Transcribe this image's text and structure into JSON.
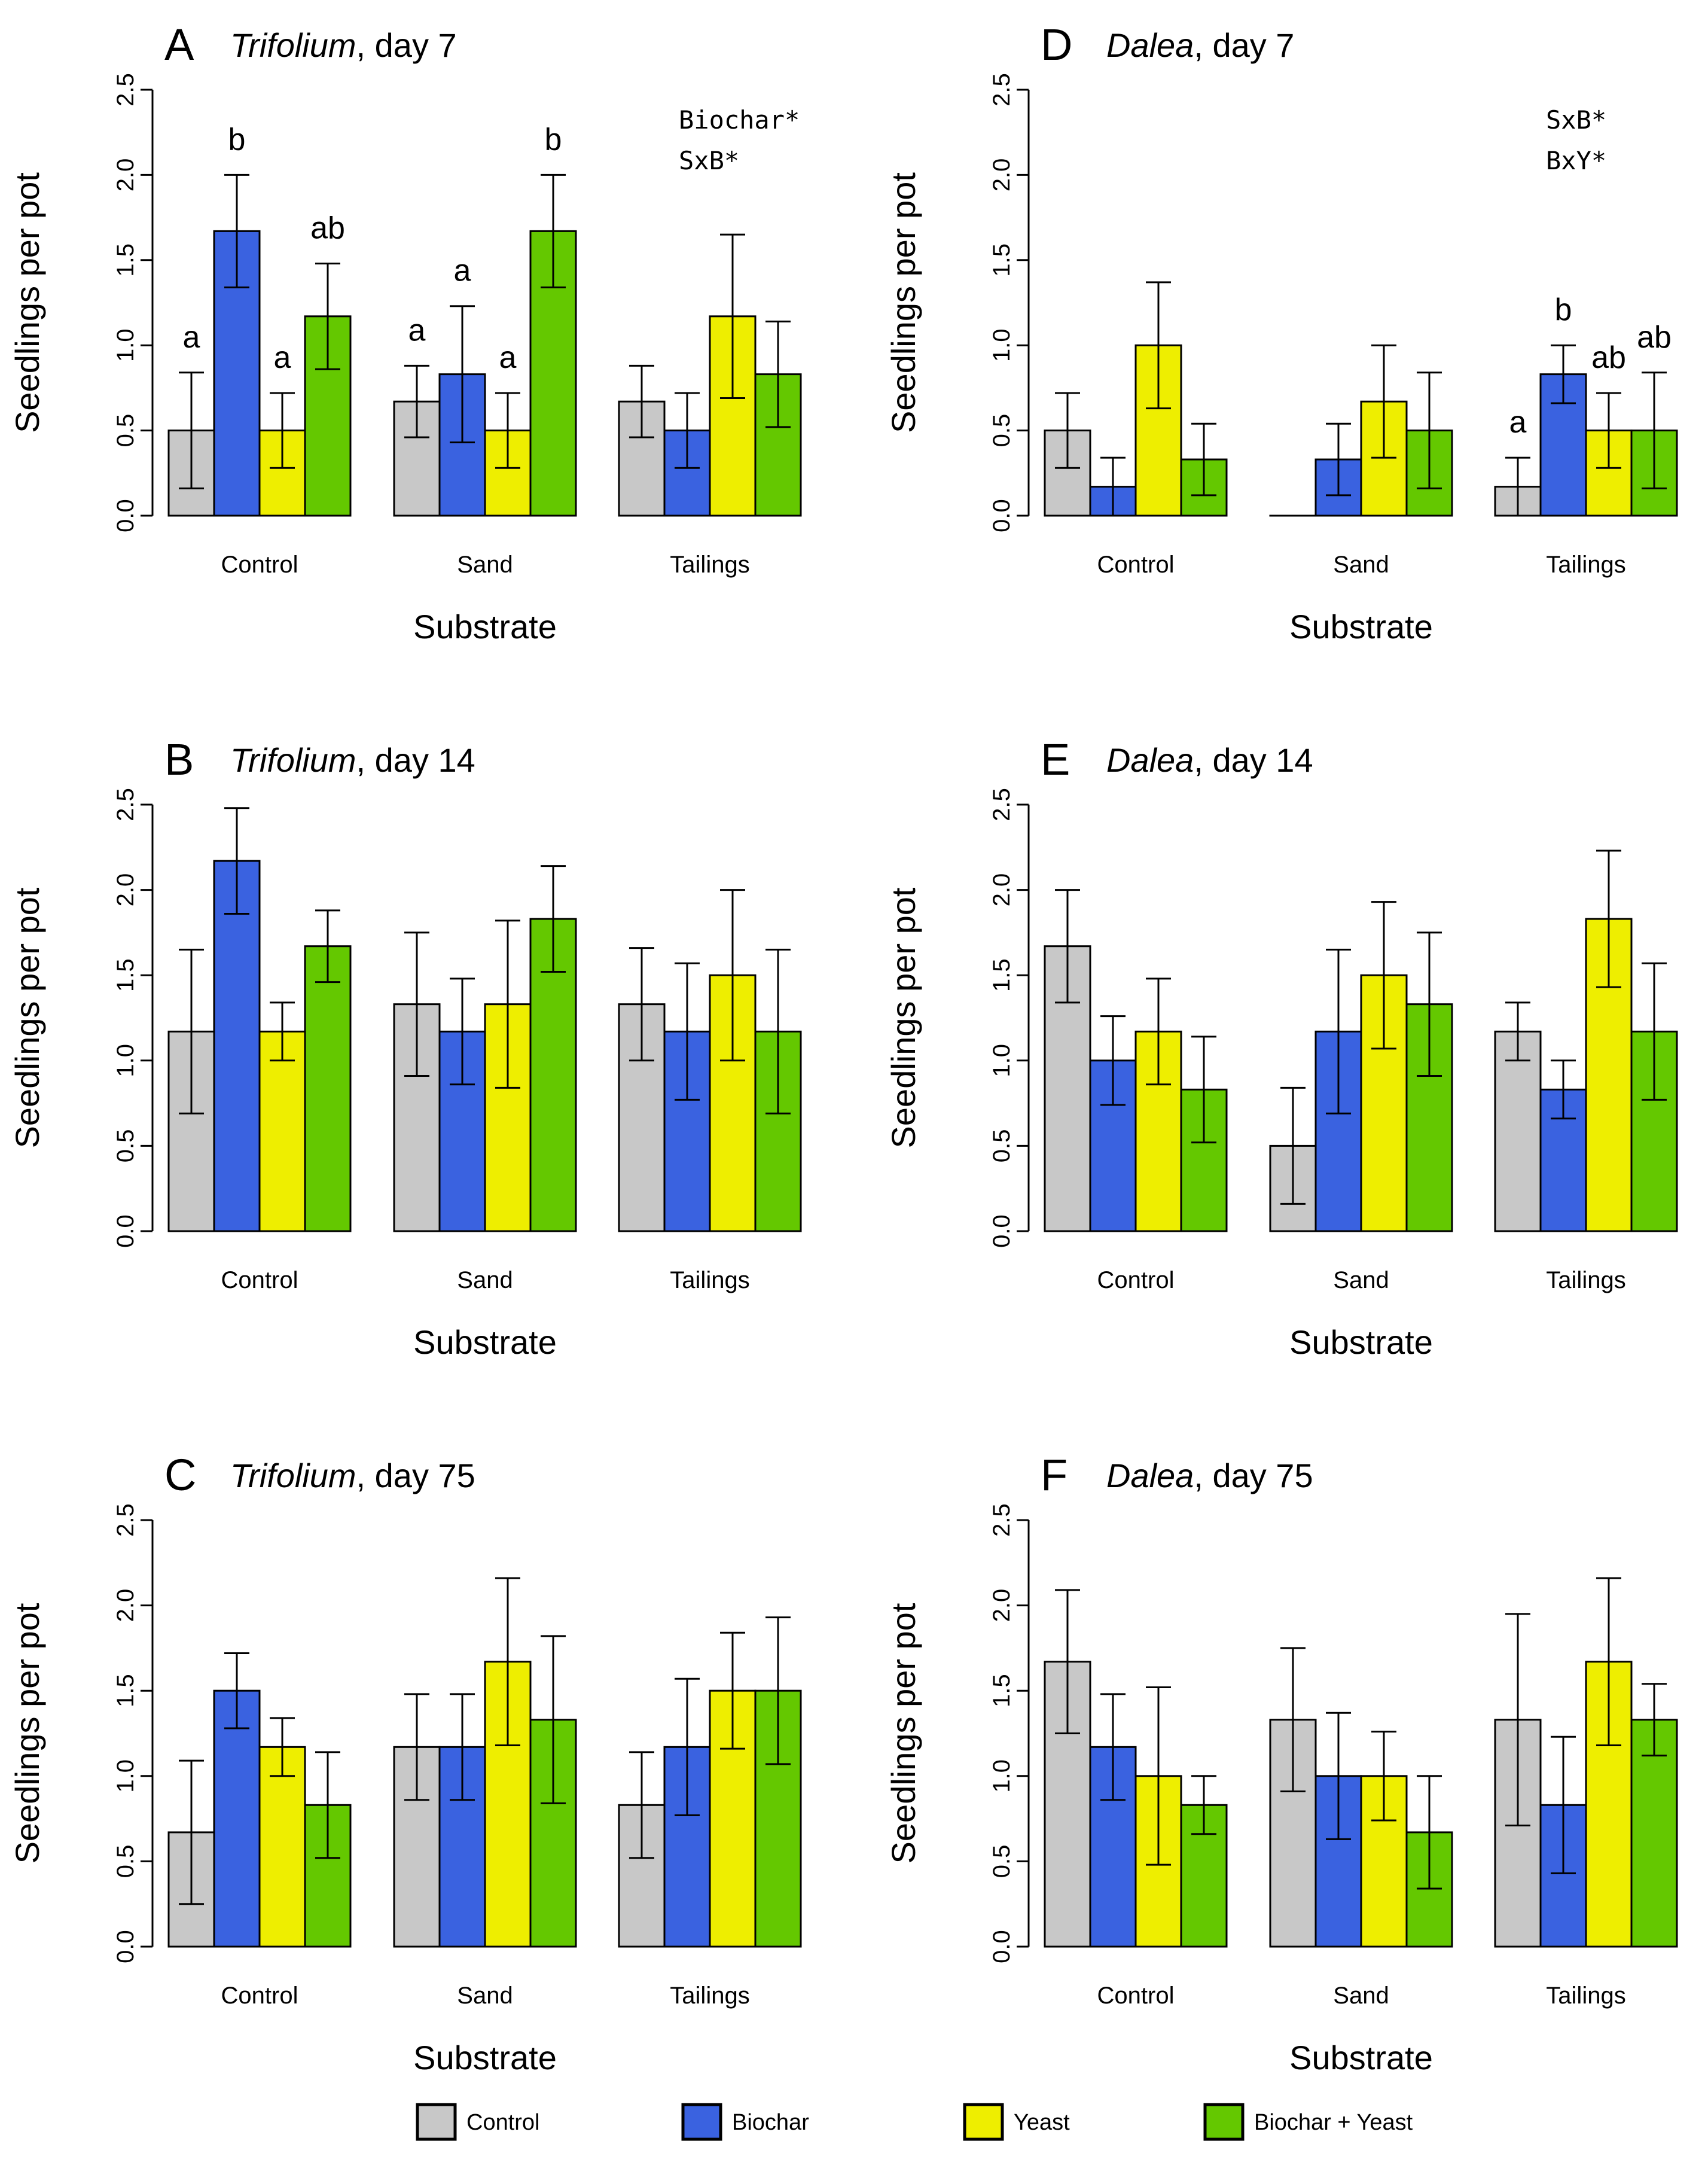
{
  "categories": [
    "Control",
    "Sand",
    "Tailings"
  ],
  "xlabel": "Substrate",
  "ylabel": "Seedlings per pot",
  "ylim": [
    0,
    2.5
  ],
  "yticks": [
    "0.0",
    "0.5",
    "1.0",
    "1.5",
    "2.0",
    "2.5"
  ],
  "colors": {
    "Control": "#c8c8c8",
    "Biochar": "#3a62e0",
    "Yeast": "#eeee00",
    "Biochar + Yeast": "#64c800"
  },
  "legend": [
    {
      "label": "Control",
      "color": "#c8c8c8"
    },
    {
      "label": "Biochar",
      "color": "#3a62e0"
    },
    {
      "label": "Yeast",
      "color": "#eeee00"
    },
    {
      "label": "Biochar + Yeast",
      "color": "#64c800"
    }
  ],
  "chart_data": [
    {
      "type": "bar",
      "panel": "A",
      "species": "Trifolium",
      "day_label": ", day 7",
      "xlabel": "Substrate",
      "ylabel": "Seedlings per pot",
      "ylim": [
        0,
        2.5
      ],
      "categories": [
        "Control",
        "Sand",
        "Tailings"
      ],
      "series": [
        {
          "name": "Control",
          "values": [
            0.5,
            0.67,
            0.67
          ],
          "errors": [
            0.34,
            0.21,
            0.21
          ],
          "letters": [
            "a",
            "a",
            ""
          ]
        },
        {
          "name": "Biochar",
          "values": [
            1.67,
            0.83,
            0.5
          ],
          "errors": [
            0.33,
            0.4,
            0.22
          ],
          "letters": [
            "b",
            "a",
            ""
          ]
        },
        {
          "name": "Yeast",
          "values": [
            0.5,
            0.5,
            1.17
          ],
          "errors": [
            0.22,
            0.22,
            0.48
          ],
          "letters": [
            "a",
            "a",
            ""
          ]
        },
        {
          "name": "Biochar + Yeast",
          "values": [
            1.17,
            1.67,
            0.83
          ],
          "errors": [
            0.31,
            0.33,
            0.31
          ],
          "letters": [
            "ab",
            "b",
            ""
          ]
        }
      ],
      "annotations": [
        "Biochar*",
        "SxB*"
      ]
    },
    {
      "type": "bar",
      "panel": "B",
      "species": "Trifolium",
      "day_label": ", day 14",
      "xlabel": "Substrate",
      "ylabel": "Seedlings per pot",
      "ylim": [
        0,
        2.5
      ],
      "categories": [
        "Control",
        "Sand",
        "Tailings"
      ],
      "series": [
        {
          "name": "Control",
          "values": [
            1.17,
            1.33,
            1.33
          ],
          "errors": [
            0.48,
            0.42,
            0.33
          ],
          "letters": [
            "",
            "",
            ""
          ]
        },
        {
          "name": "Biochar",
          "values": [
            2.17,
            1.17,
            1.17
          ],
          "errors": [
            0.31,
            0.31,
            0.4
          ],
          "letters": [
            "",
            "",
            ""
          ]
        },
        {
          "name": "Yeast",
          "values": [
            1.17,
            1.33,
            1.5
          ],
          "errors": [
            0.17,
            0.49,
            0.5
          ],
          "letters": [
            "",
            "",
            ""
          ]
        },
        {
          "name": "Biochar + Yeast",
          "values": [
            1.67,
            1.83,
            1.17
          ],
          "errors": [
            0.21,
            0.31,
            0.48
          ],
          "letters": [
            "",
            "",
            ""
          ]
        }
      ],
      "annotations": []
    },
    {
      "type": "bar",
      "panel": "C",
      "species": "Trifolium",
      "day_label": ", day 75",
      "xlabel": "Substrate",
      "ylabel": "Seedlings per pot",
      "ylim": [
        0,
        2.5
      ],
      "categories": [
        "Control",
        "Sand",
        "Tailings"
      ],
      "series": [
        {
          "name": "Control",
          "values": [
            0.67,
            1.17,
            0.83
          ],
          "errors": [
            0.42,
            0.31,
            0.31
          ],
          "letters": [
            "",
            "",
            ""
          ]
        },
        {
          "name": "Biochar",
          "values": [
            1.5,
            1.17,
            1.17
          ],
          "errors": [
            0.22,
            0.31,
            0.4
          ],
          "letters": [
            "",
            "",
            ""
          ]
        },
        {
          "name": "Yeast",
          "values": [
            1.17,
            1.67,
            1.5
          ],
          "errors": [
            0.17,
            0.49,
            0.34
          ],
          "letters": [
            "",
            "",
            ""
          ]
        },
        {
          "name": "Biochar + Yeast",
          "values": [
            0.83,
            1.33,
            1.5
          ],
          "errors": [
            0.31,
            0.49,
            0.43
          ],
          "letters": [
            "",
            "",
            ""
          ]
        }
      ],
      "annotations": []
    },
    {
      "type": "bar",
      "panel": "D",
      "species": "Dalea",
      "day_label": ", day 7",
      "xlabel": "Substrate",
      "ylabel": "Seedlings per pot",
      "ylim": [
        0,
        2.5
      ],
      "categories": [
        "Control",
        "Sand",
        "Tailings"
      ],
      "series": [
        {
          "name": "Control",
          "values": [
            0.5,
            0.0,
            0.17
          ],
          "errors": [
            0.22,
            0.0,
            0.17
          ],
          "letters": [
            "",
            "",
            "a"
          ]
        },
        {
          "name": "Biochar",
          "values": [
            0.17,
            0.33,
            0.83
          ],
          "errors": [
            0.17,
            0.21,
            0.17
          ],
          "letters": [
            "",
            "",
            "b"
          ]
        },
        {
          "name": "Yeast",
          "values": [
            1.0,
            0.67,
            0.5
          ],
          "errors": [
            0.37,
            0.33,
            0.22
          ],
          "letters": [
            "",
            "",
            "ab"
          ]
        },
        {
          "name": "Biochar + Yeast",
          "values": [
            0.33,
            0.5,
            0.5
          ],
          "errors": [
            0.21,
            0.34,
            0.34
          ],
          "letters": [
            "",
            "",
            "ab"
          ]
        }
      ],
      "annotations": [
        "SxB*",
        "BxY*"
      ]
    },
    {
      "type": "bar",
      "panel": "E",
      "species": "Dalea",
      "day_label": ", day 14",
      "xlabel": "Substrate",
      "ylabel": "Seedlings per pot",
      "ylim": [
        0,
        2.5
      ],
      "categories": [
        "Control",
        "Sand",
        "Tailings"
      ],
      "series": [
        {
          "name": "Control",
          "values": [
            1.67,
            0.5,
            1.17
          ],
          "errors": [
            0.33,
            0.34,
            0.17
          ],
          "letters": [
            "",
            "",
            ""
          ]
        },
        {
          "name": "Biochar",
          "values": [
            1.0,
            1.17,
            0.83
          ],
          "errors": [
            0.26,
            0.48,
            0.17
          ],
          "letters": [
            "",
            "",
            ""
          ]
        },
        {
          "name": "Yeast",
          "values": [
            1.17,
            1.5,
            1.83
          ],
          "errors": [
            0.31,
            0.43,
            0.4
          ],
          "letters": [
            "",
            "",
            ""
          ]
        },
        {
          "name": "Biochar + Yeast",
          "values": [
            0.83,
            1.33,
            1.17
          ],
          "errors": [
            0.31,
            0.42,
            0.4
          ],
          "letters": [
            "",
            "",
            ""
          ]
        }
      ],
      "annotations": []
    },
    {
      "type": "bar",
      "panel": "F",
      "species": "Dalea",
      "day_label": ", day 75",
      "xlabel": "Substrate",
      "ylabel": "Seedlings per pot",
      "ylim": [
        0,
        2.5
      ],
      "categories": [
        "Control",
        "Sand",
        "Tailings"
      ],
      "series": [
        {
          "name": "Control",
          "values": [
            1.67,
            1.33,
            1.33
          ],
          "errors": [
            0.42,
            0.42,
            0.62
          ],
          "letters": [
            "",
            "",
            ""
          ]
        },
        {
          "name": "Biochar",
          "values": [
            1.17,
            1.0,
            0.83
          ],
          "errors": [
            0.31,
            0.37,
            0.4
          ],
          "letters": [
            "",
            "",
            ""
          ]
        },
        {
          "name": "Yeast",
          "values": [
            1.0,
            1.0,
            1.67
          ],
          "errors": [
            0.52,
            0.26,
            0.49
          ],
          "letters": [
            "",
            "",
            ""
          ]
        },
        {
          "name": "Biochar + Yeast",
          "values": [
            0.83,
            0.67,
            1.33
          ],
          "errors": [
            0.17,
            0.33,
            0.21
          ],
          "letters": [
            "",
            "",
            ""
          ]
        }
      ],
      "annotations": []
    }
  ]
}
